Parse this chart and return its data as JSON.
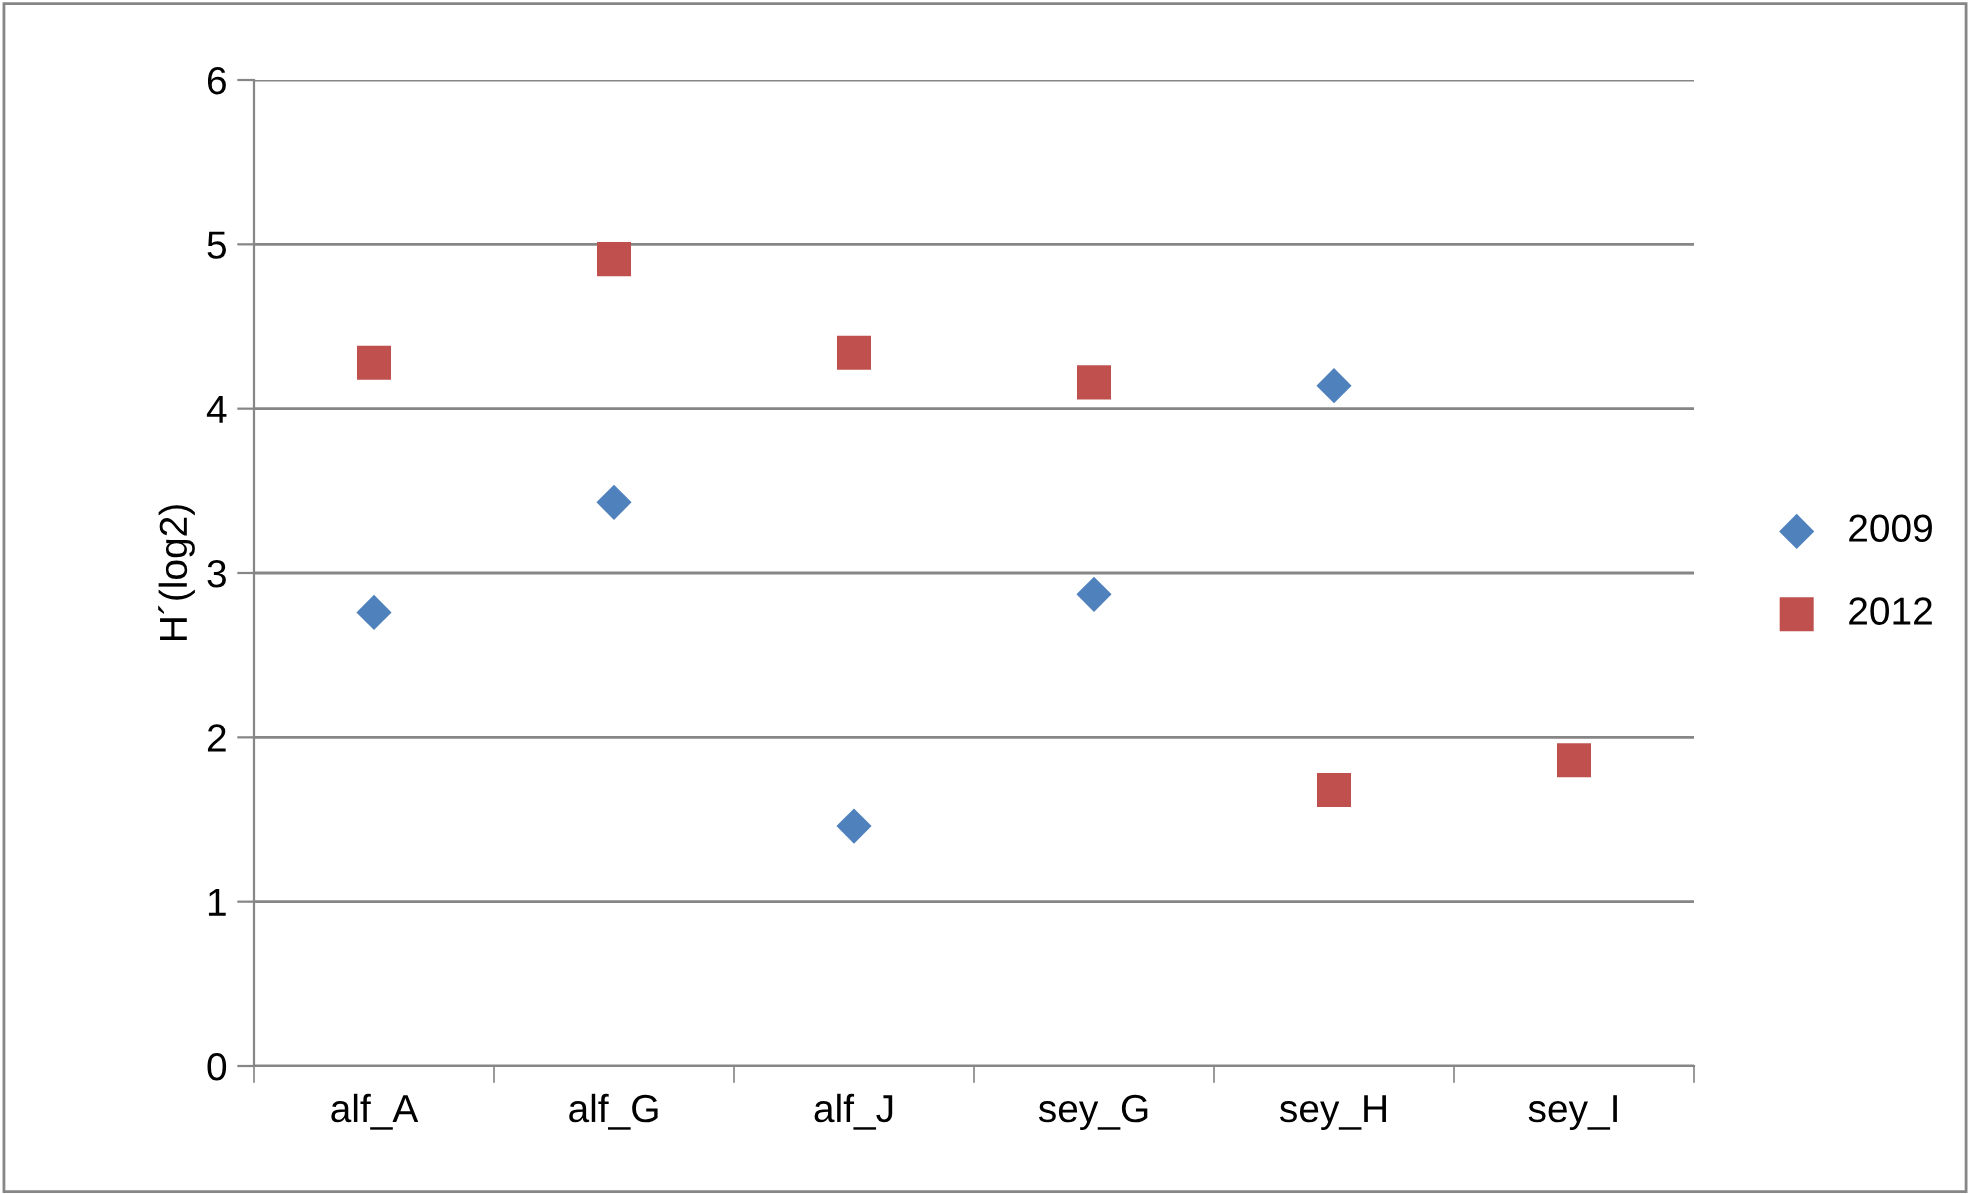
{
  "chart_data": {
    "type": "scatter",
    "ylabel": "H´(log2)",
    "categories": [
      "alf_A",
      "alf_G",
      "alf_J",
      "sey_G",
      "sey_H",
      "sey_I"
    ],
    "series": [
      {
        "name": "2009",
        "color": "#4f81bd",
        "marker": "diamond",
        "values": [
          2.76,
          3.43,
          1.46,
          2.87,
          4.14,
          null
        ]
      },
      {
        "name": "2012",
        "color": "#c0504d",
        "marker": "square",
        "values": [
          4.28,
          4.91,
          4.34,
          4.16,
          1.68,
          1.86
        ]
      }
    ],
    "ylim": [
      0,
      6
    ],
    "yticks": [
      0,
      1,
      2,
      3,
      4,
      5,
      6
    ],
    "grid": "y",
    "legend": "right"
  }
}
